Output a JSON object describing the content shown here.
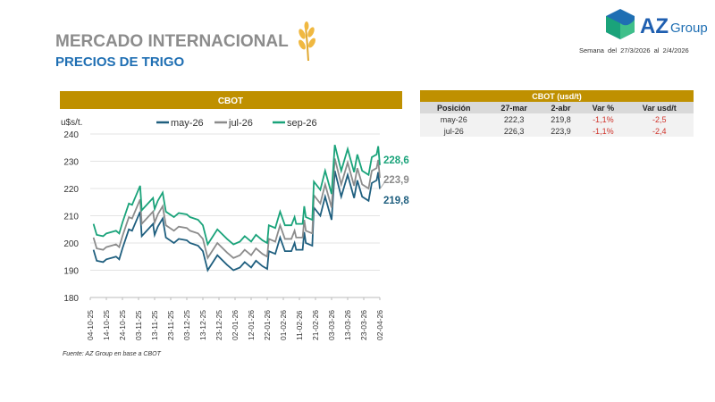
{
  "header": {
    "title": "MERCADO INTERNACIONAL",
    "subtitle": "PRECIOS DE TRIGO",
    "week_label": "Semana del",
    "week_from": "27/3/2026",
    "week_sep": "al",
    "week_to": "2/4/2026",
    "logo_text": "AZ Group"
  },
  "table": {
    "title": "CBOT (usd/t)",
    "columns": [
      "Posición",
      "27-mar",
      "2-abr",
      "Var %",
      "Var usd/t"
    ],
    "rows": [
      [
        "may-26",
        "222,3",
        "219,8",
        "-1,1%",
        "-2,5"
      ],
      [
        "jul-26",
        "226,3",
        "223,9",
        "-1,1%",
        "-2,4"
      ]
    ]
  },
  "source": "Fuente: AZ Group en base a CBOT",
  "chart_data": {
    "type": "line",
    "title": "CBOT",
    "ylabel": "u$s/t.",
    "ylim": [
      180,
      240
    ],
    "yticks": [
      180,
      190,
      200,
      210,
      220,
      230,
      240
    ],
    "grid": true,
    "legend": "top",
    "xticks": [
      "04-10-25",
      "14-10-25",
      "24-10-25",
      "03-11-25",
      "13-11-25",
      "23-11-25",
      "03-12-25",
      "13-12-25",
      "23-12-25",
      "02-01-26",
      "12-01-26",
      "22-01-26",
      "01-02-26",
      "11-02-26",
      "21-02-26",
      "03-03-26",
      "13-03-26",
      "23-03-26",
      "02-04-26"
    ],
    "x": [
      "2025-10-06",
      "2025-10-08",
      "2025-10-12",
      "2025-10-14",
      "2025-10-20",
      "2025-10-22",
      "2025-10-24",
      "2025-10-28",
      "2025-10-30",
      "2025-11-04",
      "2025-11-05",
      "2025-11-12",
      "2025-11-13",
      "2025-11-15",
      "2025-11-18",
      "2025-11-20",
      "2025-11-25",
      "2025-11-28",
      "2025-12-03",
      "2025-12-05",
      "2025-12-10",
      "2025-12-13",
      "2025-12-16",
      "2025-12-22",
      "2025-12-28",
      "2026-01-01",
      "2026-01-05",
      "2026-01-08",
      "2026-01-12",
      "2026-01-15",
      "2026-01-19",
      "2026-01-22",
      "2026-01-23",
      "2026-01-27",
      "2026-01-30",
      "2026-02-02",
      "2026-02-06",
      "2026-02-08",
      "2026-02-09",
      "2026-02-13",
      "2026-02-14",
      "2026-02-15",
      "2026-02-19",
      "2026-02-20",
      "2026-02-24",
      "2026-02-27",
      "2026-03-03",
      "2026-03-05",
      "2026-03-09",
      "2026-03-13",
      "2026-03-17",
      "2026-03-19",
      "2026-03-22",
      "2026-03-26",
      "2026-03-28",
      "2026-03-31",
      "2026-04-01",
      "2026-04-02"
    ],
    "series": [
      {
        "name": "may-26",
        "color": "#1f5f7f",
        "end_label": "219,8",
        "values": [
          197.5,
          193.5,
          193,
          194,
          195,
          194,
          198,
          205,
          204.5,
          211.5,
          202.5,
          207,
          203,
          206,
          209,
          202,
          200,
          201.5,
          201,
          200,
          199,
          197,
          190,
          195.5,
          192,
          190,
          191,
          193,
          191,
          193.5,
          191.5,
          190.5,
          197,
          196,
          202,
          197,
          197,
          200,
          197.5,
          197.5,
          204,
          200,
          199,
          213,
          210,
          217,
          208.5,
          226.5,
          217,
          225,
          216.5,
          223,
          217,
          215.5,
          222,
          223,
          226,
          219.8
        ]
      },
      {
        "name": "jul-26",
        "color": "#8c8c8c",
        "end_label": "223,9",
        "values": [
          202,
          198,
          197.5,
          198.5,
          199.5,
          198.5,
          202.5,
          209.5,
          209,
          216,
          207,
          211.5,
          207.5,
          210.5,
          213.5,
          206.5,
          204.5,
          206,
          205.5,
          204.5,
          203.5,
          201.5,
          194.5,
          200,
          196.5,
          194.5,
          195.5,
          197.5,
          195.5,
          198,
          196,
          195,
          201.5,
          200.5,
          206.5,
          201.5,
          201.5,
          204.5,
          202,
          202,
          208.5,
          204.5,
          203.5,
          217.5,
          214.5,
          221.5,
          213,
          231,
          221.5,
          229.5,
          221,
          227.5,
          221.5,
          220,
          226.5,
          227.5,
          230.5,
          223.9
        ]
      },
      {
        "name": "sep-26",
        "color": "#1aa37a",
        "end_label": "228,6",
        "values": [
          207,
          203,
          202.5,
          203.5,
          204.5,
          203.5,
          207.5,
          214.5,
          214,
          221,
          212,
          216.5,
          212.5,
          215.5,
          218.5,
          211.5,
          209.5,
          211,
          210.5,
          209.5,
          208.5,
          206.5,
          199.5,
          205,
          201.5,
          199.5,
          200.5,
          202.5,
          200.5,
          203,
          201,
          200,
          206.5,
          205.5,
          211.5,
          206.5,
          206.5,
          209.5,
          207,
          207,
          213.5,
          209.5,
          208.5,
          222.5,
          219.5,
          226.5,
          218,
          236,
          226.5,
          234.5,
          226,
          232.5,
          226.5,
          225,
          231.5,
          232.5,
          235.5,
          228.6
        ]
      }
    ]
  }
}
